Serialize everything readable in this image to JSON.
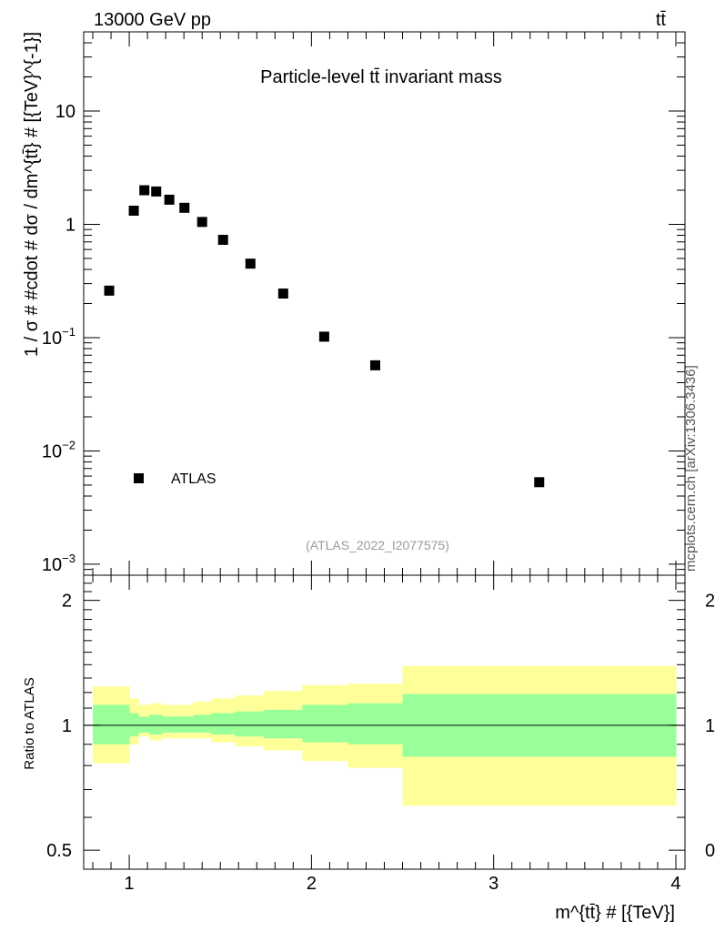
{
  "header": {
    "left_label": "13000 GeV pp",
    "right_label": "tt̄"
  },
  "side_label": "mcplots.cern.ch [arXiv:1306.3436]",
  "chart_data": [
    {
      "type": "scatter",
      "title": "Particle-level tt̄ invariant mass",
      "ylabel": "1 / σ # #cdot # dσ / dm^{tt̄} # [{TeV}^{-1}]",
      "yscale": "log",
      "ylim": [
        0.0008,
        50
      ],
      "xlim": [
        0.75,
        4.05
      ],
      "yticks": [
        {
          "value": 0.001,
          "base": "10",
          "exp": "−3"
        },
        {
          "value": 0.01,
          "base": "10",
          "exp": "−2"
        },
        {
          "value": 0.1,
          "base": "10",
          "exp": "−1"
        },
        {
          "value": 1,
          "base": "1",
          "exp": ""
        },
        {
          "value": 10,
          "base": "10",
          "exp": ""
        }
      ],
      "legend": {
        "label": "ATLAS",
        "position": "bottom-left"
      },
      "analysis_label": "(ATLAS_2022_I2077575)",
      "series": [
        {
          "name": "ATLAS",
          "x": [
            0.89,
            1.025,
            1.083,
            1.148,
            1.22,
            1.303,
            1.4,
            1.515,
            1.665,
            1.845,
            2.07,
            2.35,
            3.25
          ],
          "y": [
            0.26,
            1.32,
            2.0,
            1.95,
            1.65,
            1.4,
            1.05,
            0.73,
            0.45,
            0.245,
            0.102,
            0.057,
            0.0053
          ]
        }
      ]
    },
    {
      "type": "area",
      "ylabel": "Ratio to ATLAS",
      "xlabel": "m^{tt̄} # [{TeV}]",
      "yscale": "log",
      "ylim": [
        0.45,
        2.3
      ],
      "xlim": [
        0.75,
        4.05
      ],
      "yticks": [
        {
          "value": 0.5,
          "label": "0.5"
        },
        {
          "value": 1,
          "label": "1"
        },
        {
          "value": 2,
          "label": "2"
        }
      ],
      "xticks": [
        {
          "value": 1,
          "label": "1"
        },
        {
          "value": 2,
          "label": "2"
        },
        {
          "value": 3,
          "label": "3"
        },
        {
          "value": 4,
          "label": "4"
        }
      ],
      "bin_edges": [
        0.8,
        1.0,
        1.05,
        1.11,
        1.18,
        1.26,
        1.35,
        1.45,
        1.58,
        1.74,
        1.95,
        2.2,
        2.5,
        4.0
      ],
      "bands": [
        {
          "name": "total uncertainty",
          "color": "#ffff99",
          "lower": [
            0.81,
            0.9,
            0.94,
            0.92,
            0.93,
            0.93,
            0.93,
            0.91,
            0.89,
            0.87,
            0.82,
            0.79,
            0.64
          ],
          "upper": [
            1.24,
            1.16,
            1.12,
            1.13,
            1.12,
            1.12,
            1.14,
            1.16,
            1.18,
            1.21,
            1.25,
            1.26,
            1.39
          ]
        },
        {
          "name": "statistical uncertainty",
          "color": "#99ff99",
          "lower": [
            0.9,
            0.94,
            0.96,
            0.95,
            0.96,
            0.96,
            0.96,
            0.95,
            0.94,
            0.93,
            0.91,
            0.9,
            0.84
          ],
          "upper": [
            1.12,
            1.07,
            1.05,
            1.06,
            1.05,
            1.05,
            1.06,
            1.07,
            1.08,
            1.09,
            1.12,
            1.13,
            1.19
          ]
        }
      ],
      "reference_line": 1
    }
  ]
}
